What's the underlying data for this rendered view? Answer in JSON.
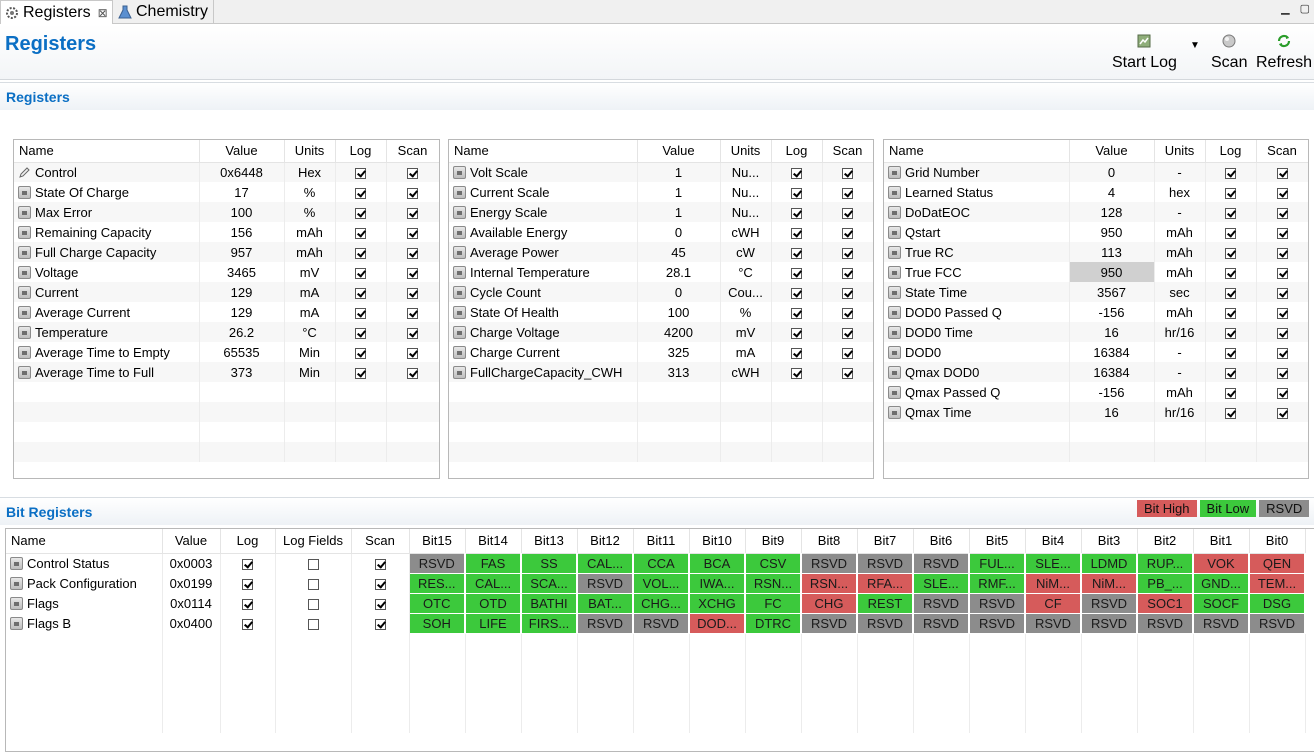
{
  "tabs": [
    {
      "label": "Registers",
      "close": "⊠"
    },
    {
      "label": "Chemistry"
    }
  ],
  "header": {
    "title": "Registers",
    "start_log": "Start Log",
    "scan": "Scan",
    "refresh": "Refresh"
  },
  "registers_section": "Registers",
  "bit_section": "Bit Registers",
  "columns": {
    "name": "Name",
    "value": "Value",
    "units": "Units",
    "log": "Log",
    "scan": "Scan",
    "log_fields": "Log Fields"
  },
  "panel1": [
    {
      "name": "Control",
      "value": "0x6448",
      "units": "Hex",
      "icon": "pencil"
    },
    {
      "name": "State Of Charge",
      "value": "17",
      "units": "%"
    },
    {
      "name": "Max Error",
      "value": "100",
      "units": "%"
    },
    {
      "name": "Remaining Capacity",
      "value": "156",
      "units": "mAh"
    },
    {
      "name": "Full Charge Capacity",
      "value": "957",
      "units": "mAh"
    },
    {
      "name": "Voltage",
      "value": "3465",
      "units": "mV"
    },
    {
      "name": "Current",
      "value": "129",
      "units": "mA"
    },
    {
      "name": "Average Current",
      "value": "129",
      "units": "mA"
    },
    {
      "name": "Temperature",
      "value": "26.2",
      "units": "°C"
    },
    {
      "name": "Average Time to Empty",
      "value": "65535",
      "units": "Min"
    },
    {
      "name": "Average Time to Full",
      "value": "373",
      "units": "Min"
    }
  ],
  "panel2": [
    {
      "name": "Volt Scale",
      "value": "1",
      "units": "Nu..."
    },
    {
      "name": "Current Scale",
      "value": "1",
      "units": "Nu..."
    },
    {
      "name": "Energy Scale",
      "value": "1",
      "units": "Nu..."
    },
    {
      "name": "Available Energy",
      "value": "0",
      "units": "cWH"
    },
    {
      "name": "Average Power",
      "value": "45",
      "units": "cW"
    },
    {
      "name": "Internal Temperature",
      "value": "28.1",
      "units": "°C"
    },
    {
      "name": "Cycle Count",
      "value": "0",
      "units": "Cou..."
    },
    {
      "name": "State Of Health",
      "value": "100",
      "units": "%"
    },
    {
      "name": "Charge Voltage",
      "value": "4200",
      "units": "mV"
    },
    {
      "name": "Charge Current",
      "value": "325",
      "units": "mA"
    },
    {
      "name": "FullChargeCapacity_CWH",
      "value": "313",
      "units": "cWH"
    }
  ],
  "panel3": [
    {
      "name": "Grid Number",
      "value": "0",
      "units": "-"
    },
    {
      "name": "Learned Status",
      "value": "4",
      "units": "hex"
    },
    {
      "name": "DoDatEOC",
      "value": "128",
      "units": "-"
    },
    {
      "name": "Qstart",
      "value": "950",
      "units": "mAh"
    },
    {
      "name": "True RC",
      "value": "113",
      "units": "mAh"
    },
    {
      "name": "True FCC",
      "value": "950",
      "units": "mAh",
      "highlight": true
    },
    {
      "name": "State Time",
      "value": "3567",
      "units": "sec"
    },
    {
      "name": "DOD0 Passed Q",
      "value": "-156",
      "units": "mAh"
    },
    {
      "name": "DOD0 Time",
      "value": "16",
      "units": "hr/16"
    },
    {
      "name": "DOD0",
      "value": "16384",
      "units": "-"
    },
    {
      "name": "Qmax DOD0",
      "value": "16384",
      "units": "-"
    },
    {
      "name": "Qmax Passed Q",
      "value": "-156",
      "units": "mAh"
    },
    {
      "name": "Qmax Time",
      "value": "16",
      "units": "hr/16"
    }
  ],
  "legend": {
    "high": "Bit High",
    "low": "Bit Low",
    "rsvd": "RSVD",
    "colors": {
      "high": "#d65b5b",
      "low": "#3cc93c",
      "rsvd": "#8c8c8c"
    }
  },
  "bit_headers": [
    "Bit15",
    "Bit14",
    "Bit13",
    "Bit12",
    "Bit11",
    "Bit10",
    "Bit9",
    "Bit8",
    "Bit7",
    "Bit6",
    "Bit5",
    "Bit4",
    "Bit3",
    "Bit2",
    "Bit1",
    "Bit0"
  ],
  "bit_rows": [
    {
      "name": "Control Status",
      "value": "0x0003",
      "log": true,
      "log_fields": false,
      "scan": true,
      "bits": [
        [
          "RSVD",
          "r"
        ],
        [
          "FAS",
          "l"
        ],
        [
          "SS",
          "l"
        ],
        [
          "CAL...",
          "l"
        ],
        [
          "CCA",
          "l"
        ],
        [
          "BCA",
          "l"
        ],
        [
          "CSV",
          "l"
        ],
        [
          "RSVD",
          "r"
        ],
        [
          "RSVD",
          "r"
        ],
        [
          "RSVD",
          "r"
        ],
        [
          "FUL...",
          "l"
        ],
        [
          "SLE...",
          "l"
        ],
        [
          "LDMD",
          "l"
        ],
        [
          "RUP...",
          "l"
        ],
        [
          "VOK",
          "h"
        ],
        [
          "QEN",
          "h"
        ]
      ]
    },
    {
      "name": "Pack Configuration",
      "value": "0x0199",
      "log": true,
      "log_fields": false,
      "scan": true,
      "bits": [
        [
          "RES...",
          "l"
        ],
        [
          "CAL...",
          "l"
        ],
        [
          "SCA...",
          "l"
        ],
        [
          "RSVD",
          "r"
        ],
        [
          "VOL...",
          "l"
        ],
        [
          "IWA...",
          "l"
        ],
        [
          "RSN...",
          "l"
        ],
        [
          "RSN...",
          "h"
        ],
        [
          "RFA...",
          "h"
        ],
        [
          "SLE...",
          "l"
        ],
        [
          "RMF...",
          "l"
        ],
        [
          "NiM...",
          "h"
        ],
        [
          "NiM...",
          "h"
        ],
        [
          "PB_...",
          "l"
        ],
        [
          "GND...",
          "l"
        ],
        [
          "TEM...",
          "h"
        ]
      ]
    },
    {
      "name": "Flags",
      "value": "0x0114",
      "log": true,
      "log_fields": false,
      "scan": true,
      "bits": [
        [
          "OTC",
          "l"
        ],
        [
          "OTD",
          "l"
        ],
        [
          "BATHI",
          "l"
        ],
        [
          "BAT...",
          "l"
        ],
        [
          "CHG...",
          "l"
        ],
        [
          "XCHG",
          "l"
        ],
        [
          "FC",
          "l"
        ],
        [
          "CHG",
          "h"
        ],
        [
          "REST",
          "l"
        ],
        [
          "RSVD",
          "r"
        ],
        [
          "RSVD",
          "r"
        ],
        [
          "CF",
          "h"
        ],
        [
          "RSVD",
          "r"
        ],
        [
          "SOC1",
          "h"
        ],
        [
          "SOCF",
          "l"
        ],
        [
          "DSG",
          "l"
        ]
      ]
    },
    {
      "name": "Flags B",
      "value": "0x0400",
      "log": true,
      "log_fields": false,
      "scan": true,
      "bits": [
        [
          "SOH",
          "l"
        ],
        [
          "LIFE",
          "l"
        ],
        [
          "FIRS...",
          "l"
        ],
        [
          "RSVD",
          "r"
        ],
        [
          "RSVD",
          "r"
        ],
        [
          "DOD...",
          "h"
        ],
        [
          "DTRC",
          "l"
        ],
        [
          "RSVD",
          "r"
        ],
        [
          "RSVD",
          "r"
        ],
        [
          "RSVD",
          "r"
        ],
        [
          "RSVD",
          "r"
        ],
        [
          "RSVD",
          "r"
        ],
        [
          "RSVD",
          "r"
        ],
        [
          "RSVD",
          "r"
        ],
        [
          "RSVD",
          "r"
        ],
        [
          "RSVD",
          "r"
        ]
      ]
    }
  ]
}
